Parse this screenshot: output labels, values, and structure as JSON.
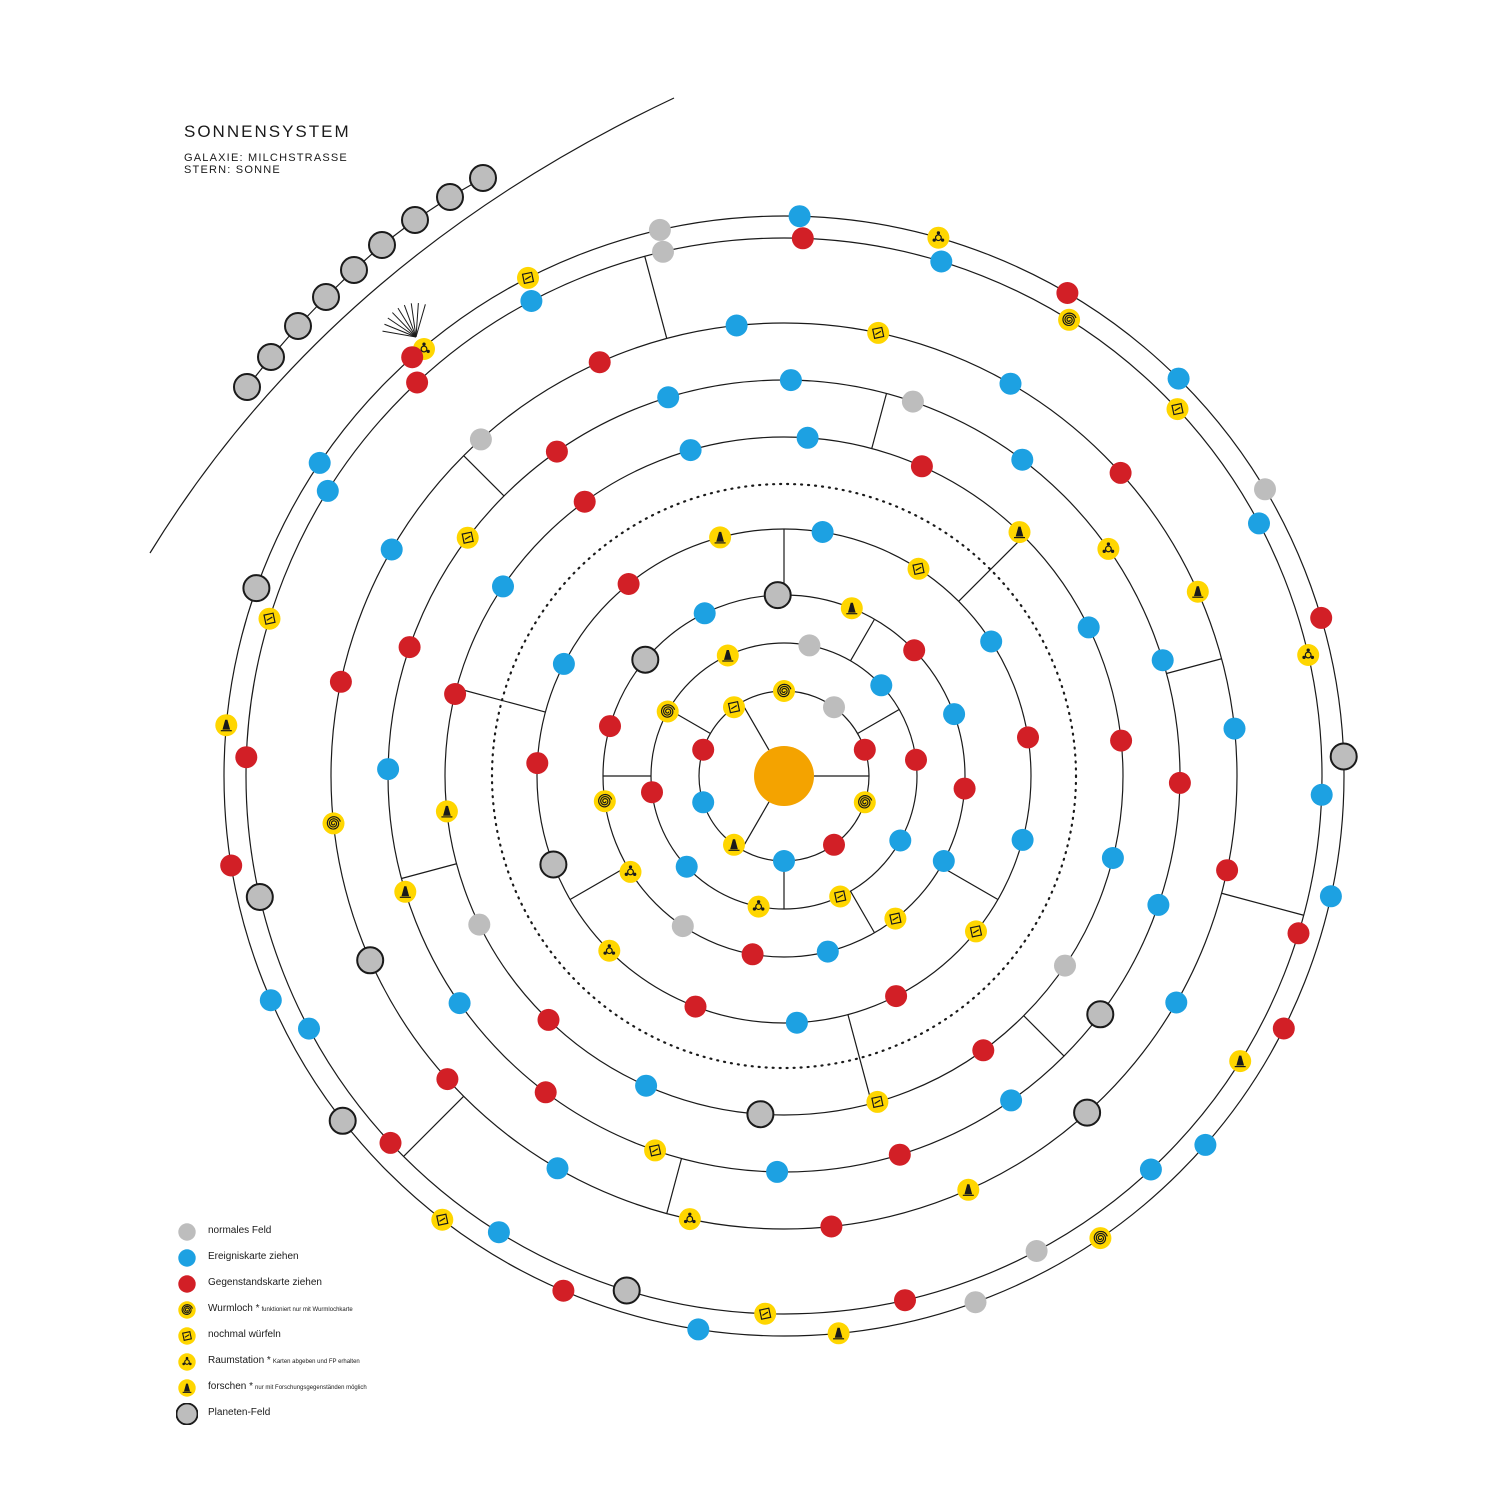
{
  "header": {
    "title": "SONNENSYSTEM",
    "galaxy": "GALAXIE: MILCHSTRASSE",
    "star": "STERN: SONNE"
  },
  "colors": {
    "normal": "#bdbdbd",
    "event": "#1da1e2",
    "item": "#d21f26",
    "special": "#ffd600",
    "sun": "#f4a300",
    "line": "#1a1a1a"
  },
  "legend": [
    {
      "type": "normal",
      "label": "normales Feld",
      "note": ""
    },
    {
      "type": "event",
      "label": "Ereigniskarte ziehen",
      "note": ""
    },
    {
      "type": "item",
      "label": "Gegenstandskarte ziehen",
      "note": ""
    },
    {
      "type": "wormhole",
      "label": "Wurmloch *",
      "note": "funktioniert nur mit Wurmlochkarte"
    },
    {
      "type": "reroll",
      "label": "nochmal würfeln",
      "note": ""
    },
    {
      "type": "station",
      "label": "Raumstation *",
      "note": "Karten abgeben und FP erhalten"
    },
    {
      "type": "research",
      "label": "forschen *",
      "note": "nur mit Forschungsgegenständen möglich"
    },
    {
      "type": "planet",
      "label": "Planeten-Feld",
      "note": ""
    }
  ],
  "board": {
    "fields": [
      [
        "wormhole",
        "normal",
        "item",
        "wormhole",
        "item",
        "event",
        "research",
        "event",
        "item",
        "reroll"
      ],
      [
        "normal",
        "event",
        "item",
        "event",
        "reroll",
        "station",
        "event",
        "item",
        "wormhole",
        "research"
      ],
      [
        "research",
        "item",
        "event",
        "item",
        "event",
        "reroll",
        "event",
        "item",
        "normal",
        "station",
        "wormhole",
        "item",
        "planet",
        "event",
        "planet"
      ],
      [
        "reroll",
        "event",
        "item",
        "event",
        "reroll",
        "item",
        "event",
        "item",
        "station",
        "planet",
        "item",
        "event",
        "item",
        "research",
        "event"
      ],
      [
        "research",
        "event",
        "item",
        "event",
        "normal",
        "item",
        "reroll",
        "planet",
        "event",
        "item",
        "normal",
        "research",
        "item",
        "event",
        "item",
        "event",
        "event",
        "item"
      ],
      [
        "station",
        "event",
        "item",
        "event",
        "planet",
        "event",
        "item",
        "event",
        "reroll",
        "item",
        "event",
        "research",
        "event",
        "item",
        "reroll",
        "item",
        "event",
        "event",
        "normal",
        "event"
      ],
      [
        "research",
        "event",
        "item",
        "event",
        "planet",
        "research",
        "item",
        "station",
        "event",
        "item",
        "planet",
        "wormhole",
        "item",
        "event",
        "normal",
        "item",
        "event",
        "reroll",
        "event",
        "item"
      ],
      [
        "station",
        "event",
        "item",
        "research",
        "event",
        "normal",
        "item",
        "reroll",
        "planet",
        "event",
        "item",
        "event",
        "planet",
        "item",
        "reroll",
        "event",
        "item",
        "event",
        "normal",
        "item",
        "event",
        "wormhole",
        "reroll",
        "event"
      ],
      [
        "planet",
        "event",
        "item",
        "event",
        "wormhole",
        "normal",
        "research",
        "event",
        "item",
        "reroll",
        "planet",
        "event",
        "item",
        "research",
        "planet",
        "event",
        "item",
        "reroll",
        "normal",
        "event",
        "station",
        "item",
        "event",
        "normal",
        "item"
      ]
    ]
  }
}
